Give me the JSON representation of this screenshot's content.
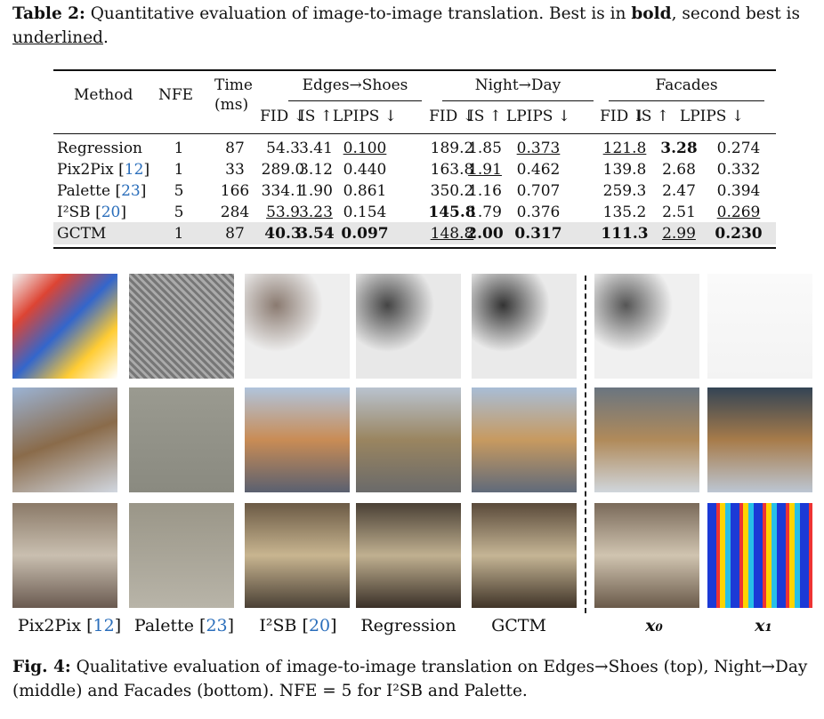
{
  "table_caption": {
    "prefix": "Table 2:",
    "text1": " Quantitative evaluation of image-to-image translation. Best is in ",
    "bold_word": "bold",
    "text2": ", second best is ",
    "underline_word": "underlined",
    "text3": "."
  },
  "table": {
    "headers": {
      "method": "Method",
      "nfe": "NFE",
      "time_line1": "Time",
      "time_line2": "(ms)",
      "groups": [
        "Edges→Shoes",
        "Night→Day",
        "Facades"
      ],
      "metrics": [
        "FID ↓",
        "IS ↑",
        "LPIPS ↓"
      ]
    },
    "rows": [
      {
        "method": "Regression",
        "ref": "",
        "nfe": "1",
        "time": "87",
        "cells": [
          "54.3",
          "3.41",
          "0.100",
          "189.2",
          "1.85",
          "0.373",
          "121.8",
          "3.28",
          "0.274"
        ],
        "bold": [
          7
        ],
        "underline": [
          2,
          5,
          6
        ]
      },
      {
        "method": "Pix2Pix",
        "ref": "12",
        "nfe": "1",
        "time": "33",
        "cells": [
          "289.0",
          "3.12",
          "0.440",
          "163.8",
          "1.91",
          "0.462",
          "139.8",
          "2.68",
          "0.332"
        ],
        "bold": [],
        "underline": [
          4
        ]
      },
      {
        "method": "Palette",
        "ref": "23",
        "nfe": "5",
        "time": "166",
        "cells": [
          "334.1",
          "1.90",
          "0.861",
          "350.2",
          "1.16",
          "0.707",
          "259.3",
          "2.47",
          "0.394"
        ],
        "bold": [],
        "underline": []
      },
      {
        "method": "I²SB",
        "ref": "20",
        "nfe": "5",
        "time": "284",
        "cells": [
          "53.9",
          "3.23",
          "0.154",
          "145.8",
          "1.79",
          "0.376",
          "135.2",
          "2.51",
          "0.269"
        ],
        "bold": [
          3
        ],
        "underline": [
          0,
          1,
          8
        ]
      },
      {
        "method": "GCTM",
        "ref": "",
        "nfe": "1",
        "time": "87",
        "cells": [
          "40.3",
          "3.54",
          "0.097",
          "148.8",
          "2.00",
          "0.317",
          "111.3",
          "2.99",
          "0.230"
        ],
        "bold": [
          0,
          1,
          2,
          4,
          5,
          6,
          8
        ],
        "underline": [
          3,
          7
        ],
        "highlight": true
      }
    ]
  },
  "figure": {
    "columns": [
      {
        "label": "Pix2Pix ",
        "ref": "12"
      },
      {
        "label": "Palette ",
        "ref": "23"
      },
      {
        "label": "I²SB ",
        "ref": "20"
      },
      {
        "label": "Regression",
        "ref": ""
      },
      {
        "label": "GCTM",
        "ref": ""
      },
      {
        "label": "x₀",
        "ref": ""
      },
      {
        "label": "x₁",
        "ref": ""
      }
    ],
    "rows": [
      "edges-shoes",
      "night-day",
      "facades"
    ]
  },
  "figure_caption": {
    "prefix": "Fig. 4:",
    "text": " Qualitative evaluation of image-to-image translation on Edges→Shoes (top), Night→Day (middle) and Facades (bottom). NFE = 5 for I²SB and Palette."
  },
  "colors": {
    "citation": "#2a6ebb",
    "highlight_row": "#e6e6e6"
  }
}
